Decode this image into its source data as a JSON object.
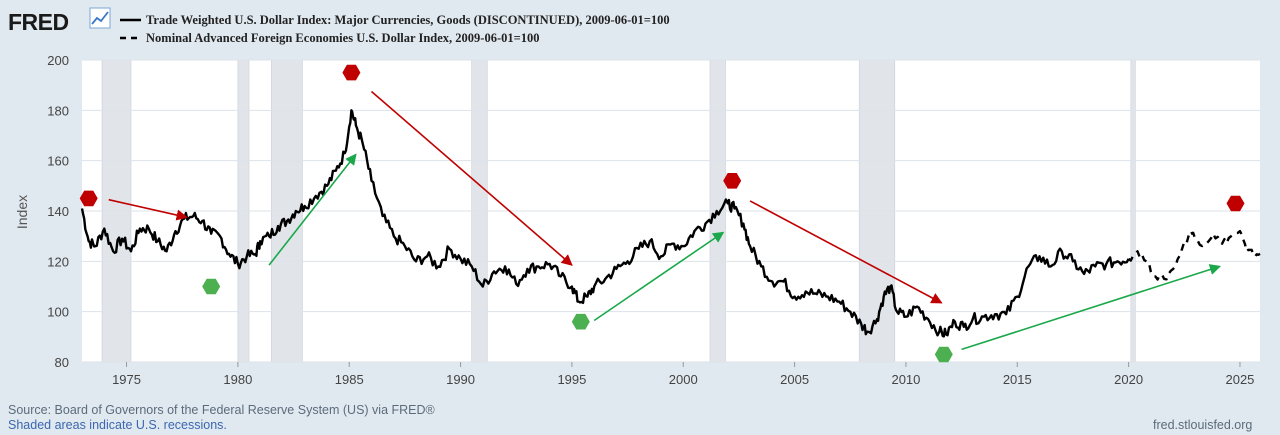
{
  "header": {
    "logo": "FRED",
    "logo_icon": "chart-line-icon"
  },
  "chart_data": {
    "type": "line",
    "title": "",
    "xlabel": "",
    "ylabel": "Index",
    "xlim": [
      1973,
      2025.9
    ],
    "ylim": [
      80,
      200
    ],
    "yticks": [
      80,
      100,
      120,
      140,
      160,
      180,
      200
    ],
    "xticks": [
      1975,
      1980,
      1985,
      1990,
      1995,
      2000,
      2005,
      2010,
      2015,
      2020,
      2025
    ],
    "legend": "top-left",
    "series": [
      {
        "name": "Trade Weighted U.S. Dollar Index: Major Currencies, Goods (DISCONTINUED), 2009-06-01=100",
        "style": "solid",
        "color": "#000000",
        "points": [
          [
            1973.0,
            141
          ],
          [
            1973.3,
            128
          ],
          [
            1973.6,
            126
          ],
          [
            1974.0,
            133
          ],
          [
            1974.4,
            124
          ],
          [
            1974.8,
            129
          ],
          [
            1975.2,
            124
          ],
          [
            1975.6,
            133
          ],
          [
            1976.0,
            133
          ],
          [
            1976.4,
            128
          ],
          [
            1976.8,
            124
          ],
          [
            1977.2,
            132
          ],
          [
            1977.6,
            137
          ],
          [
            1978.0,
            138
          ],
          [
            1978.4,
            136
          ],
          [
            1978.8,
            131
          ],
          [
            1979.2,
            130
          ],
          [
            1979.6,
            123
          ],
          [
            1980.0,
            119
          ],
          [
            1980.4,
            122
          ],
          [
            1980.8,
            123
          ],
          [
            1981.0,
            128
          ],
          [
            1981.4,
            130
          ],
          [
            1981.8,
            134
          ],
          [
            1982.2,
            136
          ],
          [
            1982.6,
            140
          ],
          [
            1983.0,
            142
          ],
          [
            1983.5,
            146
          ],
          [
            1984.0,
            150
          ],
          [
            1984.4,
            156
          ],
          [
            1984.8,
            163
          ],
          [
            1985.1,
            180
          ],
          [
            1985.3,
            174
          ],
          [
            1985.6,
            167
          ],
          [
            1986.0,
            152
          ],
          [
            1986.5,
            138
          ],
          [
            1987.0,
            130
          ],
          [
            1987.5,
            126
          ],
          [
            1988.0,
            120
          ],
          [
            1988.5,
            122
          ],
          [
            1989.0,
            118
          ],
          [
            1989.5,
            125
          ],
          [
            1990.0,
            121
          ],
          [
            1990.5,
            118
          ],
          [
            1991.0,
            110
          ],
          [
            1991.5,
            116
          ],
          [
            1992.0,
            118
          ],
          [
            1992.5,
            111
          ],
          [
            1993.0,
            117
          ],
          [
            1993.5,
            118
          ],
          [
            1994.0,
            119
          ],
          [
            1994.5,
            114
          ],
          [
            1995.0,
            110
          ],
          [
            1995.3,
            104
          ],
          [
            1995.7,
            106
          ],
          [
            1996.0,
            110
          ],
          [
            1996.5,
            113
          ],
          [
            1997.0,
            117
          ],
          [
            1997.5,
            120
          ],
          [
            1998.0,
            125
          ],
          [
            1998.5,
            128
          ],
          [
            1999.0,
            122
          ],
          [
            1999.5,
            127
          ],
          [
            2000.0,
            126
          ],
          [
            2000.5,
            132
          ],
          [
            2001.0,
            135
          ],
          [
            2001.5,
            140
          ],
          [
            2002.0,
            143
          ],
          [
            2002.3,
            141
          ],
          [
            2002.7,
            135
          ],
          [
            2003.0,
            126
          ],
          [
            2003.5,
            118
          ],
          [
            2004.0,
            112
          ],
          [
            2004.5,
            112
          ],
          [
            2005.0,
            106
          ],
          [
            2005.5,
            108
          ],
          [
            2006.0,
            107
          ],
          [
            2006.5,
            106
          ],
          [
            2007.0,
            104
          ],
          [
            2007.5,
            100
          ],
          [
            2008.0,
            95
          ],
          [
            2008.3,
            92
          ],
          [
            2008.7,
            97
          ],
          [
            2009.0,
            106
          ],
          [
            2009.3,
            110
          ],
          [
            2009.6,
            100
          ],
          [
            2010.0,
            98
          ],
          [
            2010.5,
            102
          ],
          [
            2011.0,
            97
          ],
          [
            2011.5,
            92
          ],
          [
            2011.8,
            91
          ],
          [
            2012.2,
            96
          ],
          [
            2012.6,
            94
          ],
          [
            2013.0,
            97
          ],
          [
            2013.5,
            98
          ],
          [
            2014.0,
            99
          ],
          [
            2014.5,
            99
          ],
          [
            2015.0,
            106
          ],
          [
            2015.5,
            118
          ],
          [
            2016.0,
            122
          ],
          [
            2016.5,
            118
          ],
          [
            2017.0,
            124
          ],
          [
            2017.5,
            120
          ],
          [
            2018.0,
            115
          ],
          [
            2018.5,
            118
          ],
          [
            2019.0,
            119
          ],
          [
            2019.5,
            120
          ],
          [
            2020.0,
            121
          ]
        ]
      },
      {
        "name": "Nominal Advanced Foreign Economies U.S. Dollar Index, 2009-06-01=100",
        "style": "dashed",
        "color": "#000000",
        "points": [
          [
            2020.0,
            121
          ],
          [
            2020.4,
            124
          ],
          [
            2020.8,
            120
          ],
          [
            2021.2,
            114
          ],
          [
            2021.6,
            113
          ],
          [
            2022.0,
            117
          ],
          [
            2022.4,
            125
          ],
          [
            2022.8,
            132
          ],
          [
            2023.0,
            129
          ],
          [
            2023.4,
            127
          ],
          [
            2023.8,
            131
          ],
          [
            2024.2,
            127
          ],
          [
            2024.6,
            130
          ],
          [
            2025.0,
            132
          ],
          [
            2025.3,
            124
          ],
          [
            2025.6,
            123
          ],
          [
            2025.9,
            123
          ]
        ]
      }
    ],
    "recessions": [
      [
        1973.9,
        1975.2
      ],
      [
        1980.0,
        1980.5
      ],
      [
        1981.5,
        1982.9
      ],
      [
        1990.5,
        1991.2
      ],
      [
        2001.2,
        2001.9
      ],
      [
        2007.9,
        2009.5
      ],
      [
        2020.1,
        2020.3
      ]
    ],
    "annotations": {
      "peaks": [
        [
          1973.3,
          145
        ],
        [
          1985.1,
          195
        ],
        [
          2002.2,
          152
        ],
        [
          2024.8,
          143
        ]
      ],
      "troughs": [
        [
          1978.8,
          110
        ],
        [
          1995.4,
          96
        ],
        [
          2011.7,
          83
        ]
      ],
      "red_arrows": [
        [
          [
            1974.2,
            144.5
          ],
          [
            1977.7,
            137.5
          ]
        ],
        [
          [
            1986.0,
            187.5
          ],
          [
            1995.0,
            118.5
          ]
        ],
        [
          [
            2003.0,
            144
          ],
          [
            2011.6,
            103.5
          ]
        ]
      ],
      "green_arrows": [
        [
          [
            1981.4,
            118.5
          ],
          [
            1985.3,
            162.5
          ]
        ],
        [
          [
            1996.0,
            96.5
          ],
          [
            2001.8,
            131.5
          ]
        ],
        [
          [
            2012.5,
            85
          ]
        ]
      ]
    }
  },
  "footer": {
    "source": "Source: Board of Governors of the Federal Reserve System (US) via FRED®",
    "shaded_note": "Shaded areas indicate U.S. recessions.",
    "site": "fred.stlouisfed.org"
  },
  "colors": {
    "background": "#e1e9f0",
    "plot_background": "#ffffff",
    "recession_shade": "#e1e5ea",
    "grid": "#dde3ea",
    "peak_marker": "#c00000",
    "trough_marker": "#4caf50",
    "red_arrow": "#c00000",
    "green_arrow": "#1aa84a",
    "footer_link": "#3b66b0"
  }
}
